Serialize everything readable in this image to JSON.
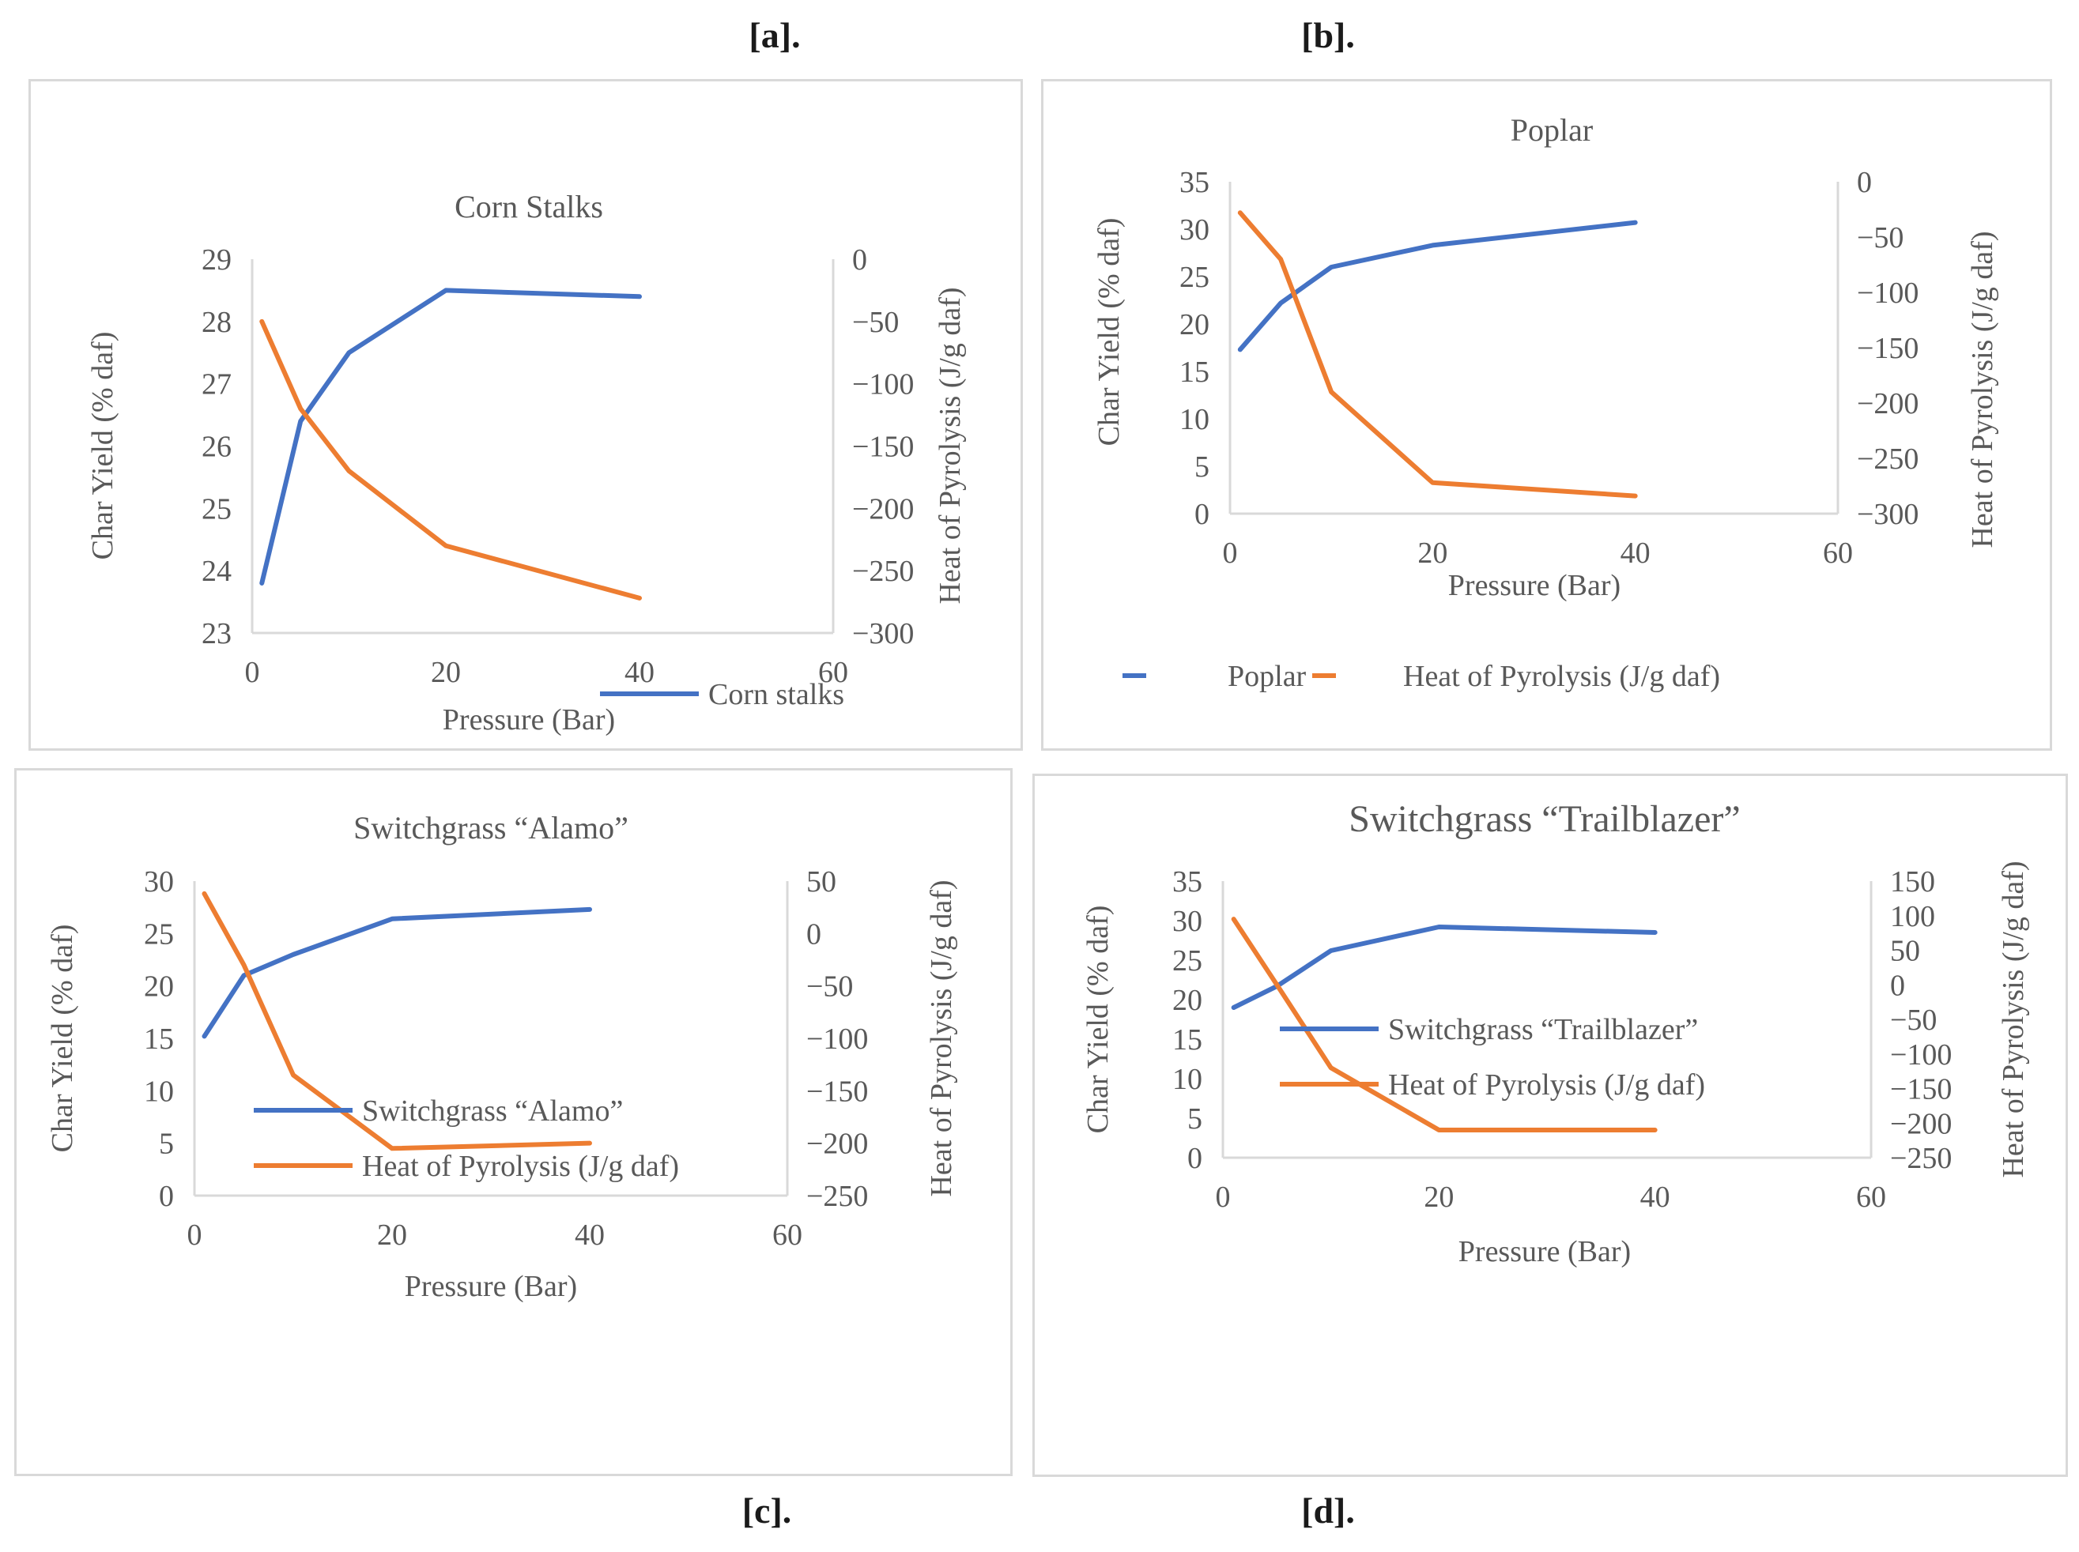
{
  "panel_labels": {
    "a": "[a].",
    "b": "[b].",
    "c": "[c].",
    "d": "[d]."
  },
  "colors": {
    "char_yield": "#4472C4",
    "heat": "#ED7D31",
    "axis": "#d9d9d9",
    "text": "#595959"
  },
  "chart_data": [
    {
      "type": "line",
      "panel": "a",
      "title": "Corn Stalks",
      "xlabel": "Pressure (Bar)",
      "ylabel": "Char Yield (% daf)",
      "y2label": "Heat of Pyrolysis (J/g daf)",
      "xlim": [
        0,
        60
      ],
      "xticks": [
        "0",
        "20",
        "40",
        "60"
      ],
      "ylim": [
        23,
        29
      ],
      "yticks": [
        "23",
        "24",
        "25",
        "26",
        "27",
        "28",
        "29"
      ],
      "y2lim": [
        -300,
        0
      ],
      "y2ticks": [
        "-300",
        "-250",
        "-200",
        "-150",
        "-100",
        "-50",
        "0"
      ],
      "x": [
        1,
        5,
        10,
        20,
        40
      ],
      "series": [
        {
          "name": "Corn stalks",
          "axis": "left",
          "values": [
            23.8,
            26.4,
            27.5,
            28.5,
            28.4
          ]
        },
        {
          "name": "Heat of Pyrolysis (J/g daf)",
          "axis": "right",
          "values": [
            -50,
            -120,
            -170,
            -230,
            -272
          ]
        }
      ],
      "legend": [
        "Corn stalks"
      ]
    },
    {
      "type": "line",
      "panel": "b",
      "title": "Poplar",
      "xlabel": "Pressure (Bar)",
      "ylabel": "Char Yield (% daf)",
      "y2label": "Heat of Pyrolysis (J/g daf)",
      "xlim": [
        0,
        60
      ],
      "xticks": [
        "0",
        "20",
        "40",
        "60"
      ],
      "ylim": [
        0,
        35
      ],
      "yticks": [
        "0",
        "5",
        "10",
        "15",
        "20",
        "25",
        "30",
        "35"
      ],
      "y2lim": [
        -300,
        0
      ],
      "y2ticks": [
        "-300",
        "-250",
        "-200",
        "-150",
        "-100",
        "-50",
        "0"
      ],
      "x": [
        1,
        5,
        10,
        20,
        40
      ],
      "series": [
        {
          "name": "Poplar",
          "axis": "left",
          "values": [
            17.3,
            22.2,
            26,
            28.3,
            30.7
          ]
        },
        {
          "name": "Heat of Pyrolysis (J/g daf)",
          "axis": "right",
          "values": [
            -28,
            -70,
            -190,
            -272,
            -284
          ]
        }
      ],
      "legend": [
        "Poplar",
        "Heat of Pyrolysis (J/g daf)"
      ]
    },
    {
      "type": "line",
      "panel": "c",
      "title": "Switchgrass “Alamo”",
      "xlabel": "Pressure (Bar)",
      "ylabel": "Char Yield (% daf)",
      "y2label": "Heat of Pyrolysis (J/g daf)",
      "xlim": [
        0,
        60
      ],
      "xticks": [
        "0",
        "20",
        "40",
        "60"
      ],
      "ylim": [
        0,
        30
      ],
      "yticks": [
        "0",
        "5",
        "10",
        "15",
        "20",
        "25",
        "30"
      ],
      "y2lim": [
        -250,
        50
      ],
      "y2ticks": [
        "-250",
        "-200",
        "-150",
        "-100",
        "-50",
        "0",
        "50"
      ],
      "x": [
        1,
        5,
        10,
        20,
        40
      ],
      "series": [
        {
          "name": "Switchgrass “Alamo”",
          "axis": "left",
          "values": [
            15.2,
            21,
            23,
            26.4,
            27.3
          ]
        },
        {
          "name": "Heat of Pyrolysis (J/g daf)",
          "axis": "right",
          "values": [
            38,
            -30,
            -135,
            -205,
            -200
          ]
        }
      ],
      "legend": [
        "Switchgrass “Alamo”",
        "Heat of Pyrolysis (J/g daf)"
      ]
    },
    {
      "type": "line",
      "panel": "d",
      "title": "Switchgrass “Trailblazer”",
      "xlabel": "Pressure (Bar)",
      "ylabel": "Char Yield (% daf)",
      "y2label": "Heat of Pyrolysis (J/g daf)",
      "xlim": [
        0,
        60
      ],
      "xticks": [
        "0",
        "20",
        "40",
        "60"
      ],
      "ylim": [
        0,
        35
      ],
      "yticks": [
        "0",
        "5",
        "10",
        "15",
        "20",
        "25",
        "30",
        "35"
      ],
      "y2lim": [
        -250,
        150
      ],
      "y2ticks": [
        "-250",
        "-200",
        "-150",
        "-100",
        "-50",
        "0",
        "50",
        "100",
        "150"
      ],
      "x": [
        1,
        5,
        10,
        20,
        40
      ],
      "series": [
        {
          "name": "Switchgrass “Trailblazer”",
          "axis": "left",
          "values": [
            19,
            21.7,
            26.2,
            29.2,
            28.5
          ]
        },
        {
          "name": "Heat of Pyrolysis (J/g daf)",
          "axis": "right",
          "values": [
            95,
            0,
            -120,
            -210,
            -210
          ]
        }
      ],
      "legend": [
        "Switchgrass “Trailblazer”",
        "Heat of Pyrolysis (J/g daf)"
      ]
    }
  ]
}
